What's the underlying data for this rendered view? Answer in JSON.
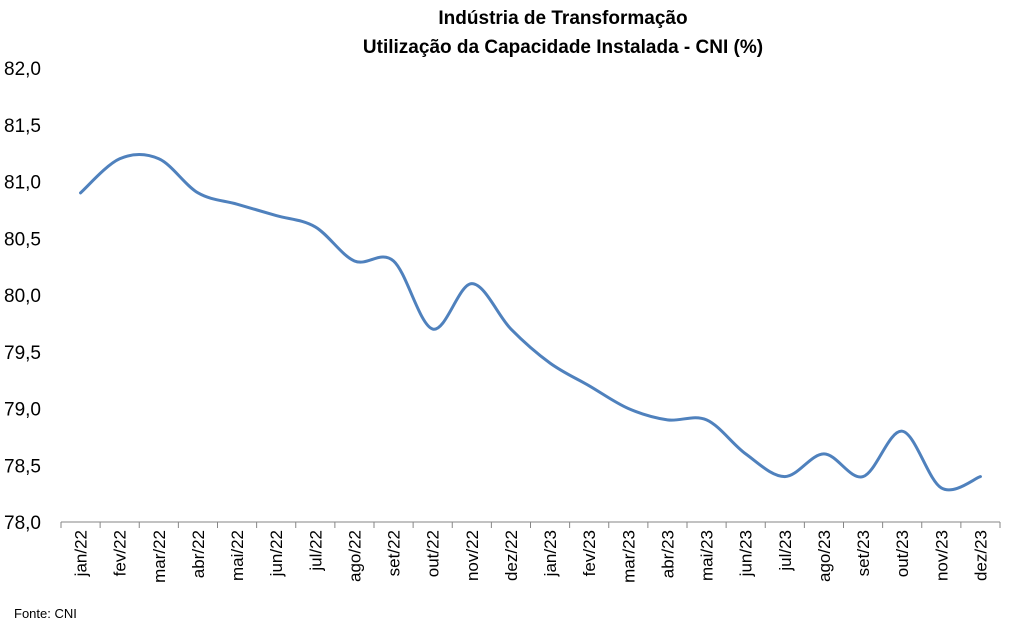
{
  "chart_data": {
    "type": "line",
    "title": "Indústria de Transformação",
    "subtitle": "Utilização da Capacidade Instalada - CNI (%)",
    "xlabel": "",
    "ylabel": "",
    "categories": [
      "jan/22",
      "fev/22",
      "mar/22",
      "abr/22",
      "mai/22",
      "jun/22",
      "jul/22",
      "ago/22",
      "set/22",
      "out/22",
      "nov/22",
      "dez/22",
      "jan/23",
      "fev/23",
      "mar/23",
      "abr/23",
      "mai/23",
      "jun/23",
      "jul/23",
      "ago/23",
      "set/23",
      "out/23",
      "nov/23",
      "dez/23"
    ],
    "y_ticks": [
      "82,0",
      "81,5",
      "81,0",
      "80,5",
      "80,0",
      "79,5",
      "79,0",
      "78,5",
      "78,0"
    ],
    "ylim": [
      78.0,
      82.0
    ],
    "grid": false,
    "legend": "none",
    "series": [
      {
        "values": [
          80.9,
          81.2,
          81.2,
          80.9,
          80.8,
          80.7,
          80.6,
          80.3,
          80.3,
          79.7,
          80.1,
          79.7,
          79.4,
          79.2,
          79.0,
          78.9,
          78.9,
          78.6,
          78.4,
          78.6,
          78.4,
          78.8,
          78.3,
          78.4
        ],
        "color": "#4f81bd"
      }
    ]
  },
  "source": "Fonte: CNI"
}
